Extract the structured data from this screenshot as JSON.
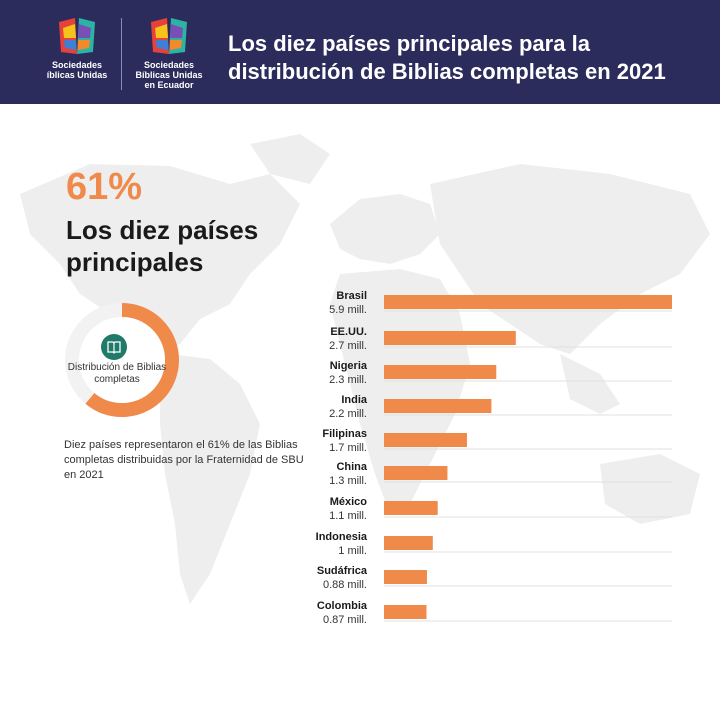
{
  "header": {
    "title": "Los diez países principales para la distribución de Biblias completas en 2021",
    "logos": [
      {
        "text": "Sociedades\níblicas Unidas"
      },
      {
        "text": "Sociedades\nBíblicas Unidas\nen Ecuador"
      }
    ]
  },
  "summary": {
    "percent": "61%",
    "label": "Los diez países principales",
    "donut_fraction": 0.61,
    "donut_label": "Distribución de Biblias completas",
    "description": "Diez países representaron el 61% de las Biblias completas distribuidas por la Fraternidad de SBU en 2021"
  },
  "colors": {
    "accent": "#f08a4b",
    "header": "#2c2c5c",
    "map": "#eeeeee",
    "icon": "#1f7a6a"
  },
  "icons": [
    "book-icon"
  ],
  "chart_data": {
    "type": "bar",
    "orientation": "horizontal",
    "categories": [
      "Brasil",
      "EE.UU.",
      "Nigeria",
      "India",
      "Filipinas",
      "China",
      "México",
      "Indonesia",
      "Sudáfrica",
      "Colombia"
    ],
    "values": [
      5.9,
      2.7,
      2.3,
      2.2,
      1.7,
      1.3,
      1.1,
      1.0,
      0.88,
      0.87
    ],
    "value_labels": [
      "5.9 mill.",
      "2.7 mill.",
      "2.3 mill.",
      "2.2 mill.",
      "1.7 mill.",
      "1.3 mill.",
      "1.1 mill.",
      "1 mill.",
      "0.88 mill.",
      "0.87 mill."
    ],
    "xlim": [
      0,
      5.9
    ]
  }
}
